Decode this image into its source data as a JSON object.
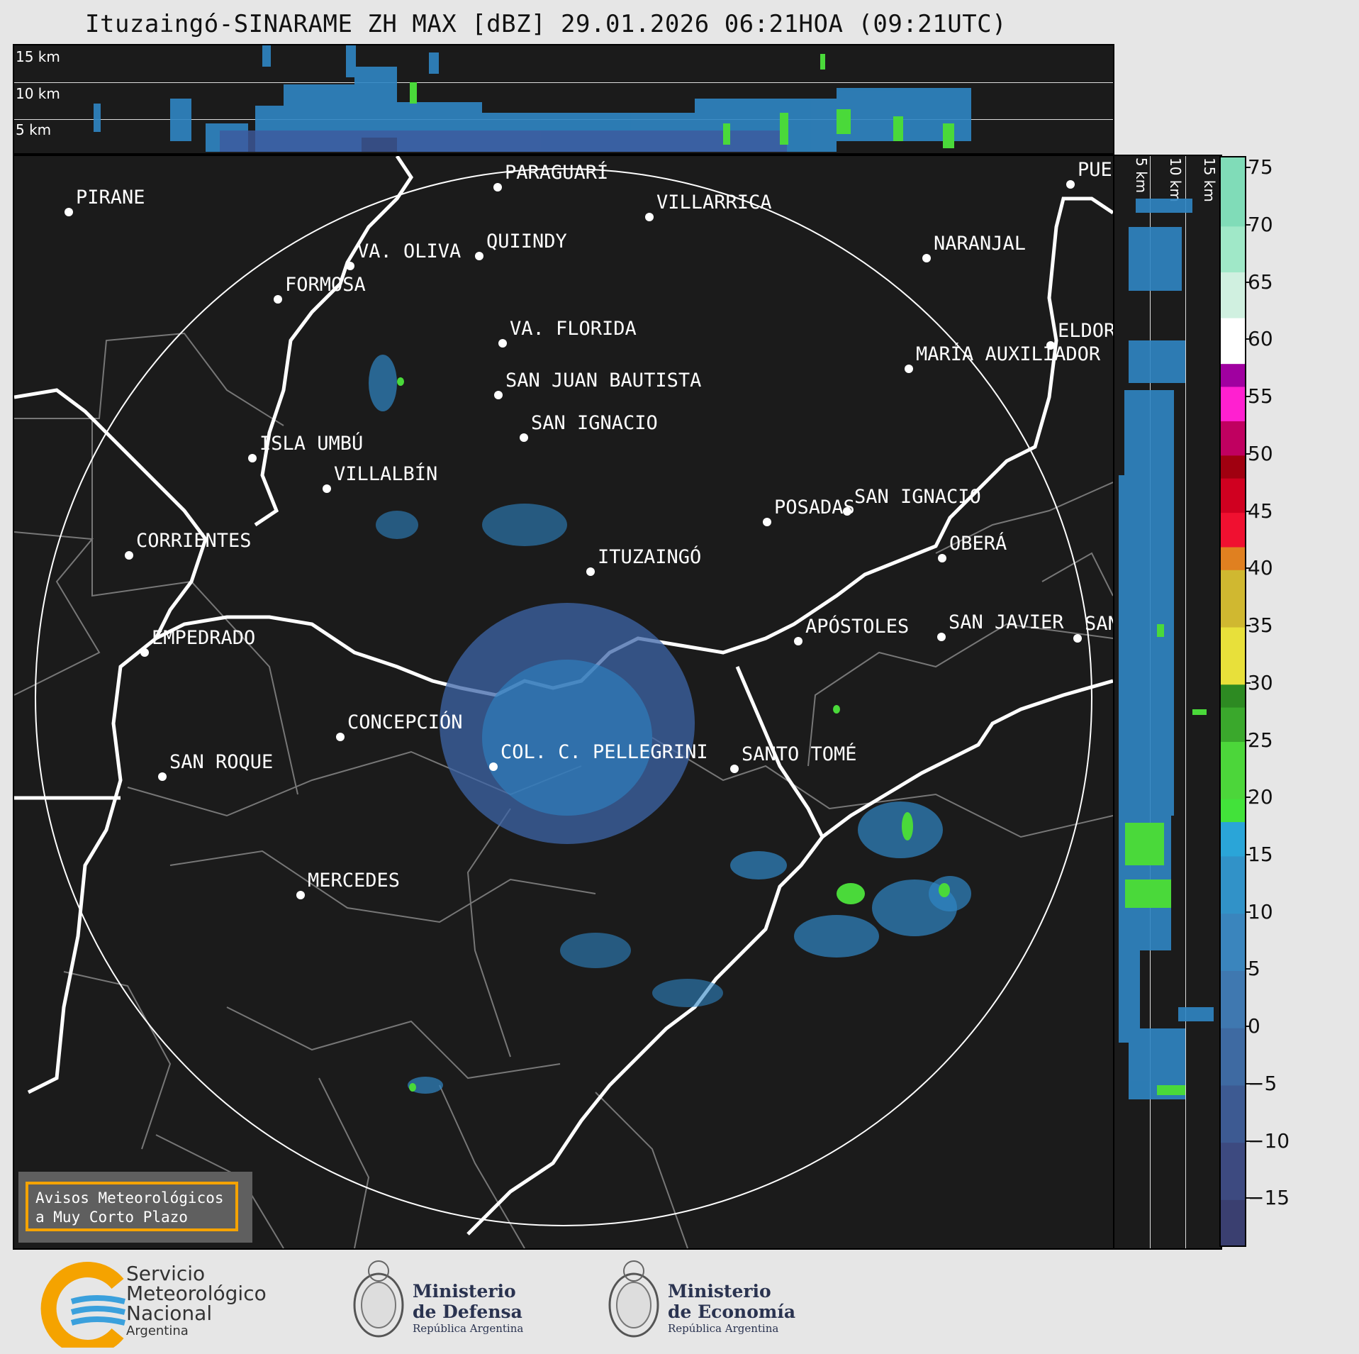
{
  "title": "Ituzaingó-SINARAME ZH MAX [dBZ] 29.01.2026 06:21HOA (09:21UTC)",
  "height_labels": [
    "15 km",
    "10 km",
    "5 km"
  ],
  "cities": [
    {
      "name": "PIRANE"
    },
    {
      "name": "PARAGUARÍ"
    },
    {
      "name": "VILLARRICA"
    },
    {
      "name": "PUER"
    },
    {
      "name": "QUIINDY"
    },
    {
      "name": "VA. OLIVA"
    },
    {
      "name": "NARANJAL"
    },
    {
      "name": "FORMOSA"
    },
    {
      "name": "VA. FLORIDA"
    },
    {
      "name": "ELDOR"
    },
    {
      "name": "MARÍA AUXILIADOR"
    },
    {
      "name": "SAN JUAN BAUTISTA"
    },
    {
      "name": "SAN IGNACIO"
    },
    {
      "name": "ISLA UMBÚ"
    },
    {
      "name": "VILLALBÍN"
    },
    {
      "name": "SAN IGNACIO"
    },
    {
      "name": "POSADAS"
    },
    {
      "name": "CORRIENTES"
    },
    {
      "name": "ITUZAINGÓ"
    },
    {
      "name": "OBERÁ"
    },
    {
      "name": "APÓSTOLES"
    },
    {
      "name": "SAN JAVIER"
    },
    {
      "name": "SAN"
    },
    {
      "name": "EMPEDRADO"
    },
    {
      "name": "CONCEPCIÓN"
    },
    {
      "name": "COL. C. PELLEGRINI"
    },
    {
      "name": "SANTO TOMÉ"
    },
    {
      "name": "SAN ROQUE"
    },
    {
      "name": "MERCEDES"
    }
  ],
  "colorbar": {
    "ticks": [
      "75",
      "70",
      "65",
      "60",
      "55",
      "50",
      "45",
      "40",
      "35",
      "30",
      "25",
      "20",
      "15",
      "10",
      "5",
      "0",
      "−5",
      "−10",
      "−15"
    ],
    "range": [
      -19,
      76
    ]
  },
  "aviso": {
    "line1": "Avisos Meteorológicos",
    "line2": "a Muy Corto Plazo"
  },
  "logos": {
    "smn": {
      "line1": "Servicio",
      "line2": "Meteorológico",
      "line3": "Nacional",
      "line4": "Argentina"
    },
    "defensa": {
      "line1": "Ministerio",
      "line2": "de Defensa",
      "line3": "República Argentina"
    },
    "economia": {
      "line1": "Ministerio",
      "line2": "de Economía",
      "line3": "República Argentina"
    }
  },
  "colors": {
    "background": "#1b1b1b",
    "echo_low": "#2f86c4",
    "echo_mid": "#4ad93a",
    "border": "#ffffff",
    "aviso_frame": "#f5a300"
  }
}
